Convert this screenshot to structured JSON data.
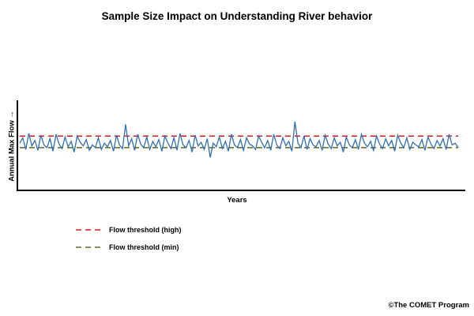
{
  "copyright": "©The COMET Program",
  "colors": {
    "series": "#2f6fb3",
    "threshold_high": "#e31a1c",
    "threshold_min": "#5b6b1d",
    "axis": "#000000"
  },
  "chart_data": {
    "type": "line",
    "title": "Sample Size Impact on Understanding River behavior",
    "xlabel": "Years",
    "ylabel": "Annual Max Flow →",
    "xlim": [
      0,
      150
    ],
    "ylim": [
      0,
      100
    ],
    "grid": false,
    "legend_placement": "bottom-left",
    "series": [
      {
        "values": [
          52,
          58,
          45,
          63,
          49,
          55,
          44,
          61,
          50,
          47,
          57,
          43,
          62,
          51,
          46,
          59,
          48,
          54,
          42,
          60,
          53,
          49,
          56,
          44,
          50,
          47,
          58,
          45,
          52,
          48,
          55,
          43,
          61,
          50,
          46,
          73,
          49,
          57,
          44,
          62,
          51,
          47,
          59,
          45,
          54,
          48,
          56,
          43,
          60,
          52,
          46,
          58,
          44,
          63,
          50,
          47,
          55,
          42,
          61,
          49,
          53,
          45,
          57,
          36,
          52,
          48,
          59,
          46,
          54,
          43,
          62,
          50,
          47,
          56,
          44,
          58,
          51,
          49,
          45,
          60,
          53,
          47,
          55,
          44,
          62,
          50,
          46,
          58,
          49,
          54,
          43,
          76,
          52,
          47,
          60,
          45,
          57,
          50,
          48,
          55,
          44,
          61,
          51,
          46,
          58,
          49,
          53,
          42,
          59,
          50,
          47,
          56,
          45,
          62,
          52,
          48,
          54,
          44,
          60,
          51,
          46,
          57,
          49,
          55,
          43,
          61,
          52,
          47,
          58,
          45,
          53,
          50,
          48,
          56,
          44,
          59,
          51,
          46,
          55,
          49,
          57,
          45,
          62,
          50,
          52,
          47
        ]
      }
    ],
    "reference_lines": [
      {
        "name": "Flow threshold (high)",
        "y": 60
      },
      {
        "name": "Flow threshold (min)",
        "y": 47
      }
    ]
  }
}
